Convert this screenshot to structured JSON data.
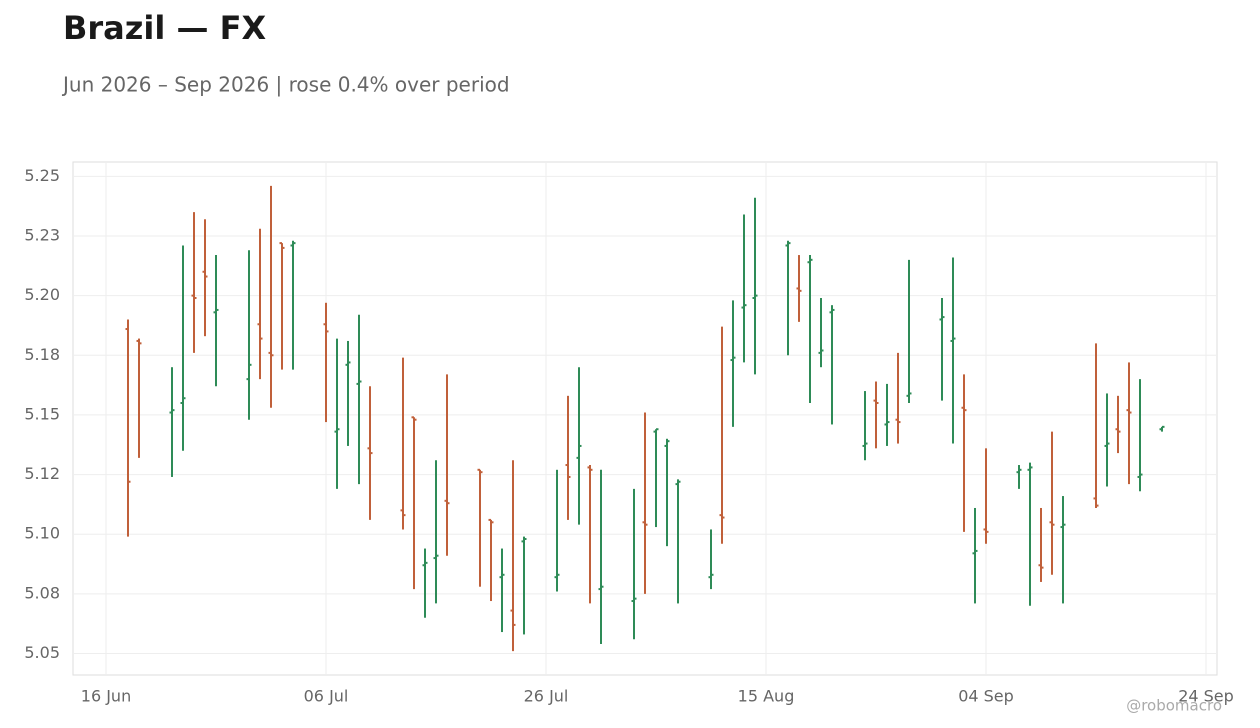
{
  "chart_data": {
    "type": "ohlc",
    "title": "Brazil — FX",
    "subtitle": "Jun 2026 – Sep 2026 | rose 0.4% over period",
    "watermark": "@robomacro",
    "up_color": "#2e8b57",
    "down_color": "#c0603a",
    "grid": true,
    "xlim": [
      "06-13",
      "09-25"
    ],
    "xticks": [
      {
        "value": "06-16",
        "label": "16 Jun"
      },
      {
        "value": "07-06",
        "label": "06 Jul"
      },
      {
        "value": "07-26",
        "label": "26 Jul"
      },
      {
        "value": "08-15",
        "label": "15 Aug"
      },
      {
        "value": "09-04",
        "label": "04 Sep"
      },
      {
        "value": "09-24",
        "label": "24 Sep"
      }
    ],
    "ylim": [
      5.041,
      5.256
    ],
    "yticks": [
      {
        "value": 5.05,
        "label": "5.05"
      },
      {
        "value": 5.075,
        "label": "5.08"
      },
      {
        "value": 5.1,
        "label": "5.10"
      },
      {
        "value": 5.125,
        "label": "5.12"
      },
      {
        "value": 5.15,
        "label": "5.15"
      },
      {
        "value": 5.175,
        "label": "5.18"
      },
      {
        "value": 5.2,
        "label": "5.20"
      },
      {
        "value": 5.225,
        "label": "5.23"
      },
      5.25
    ],
    "x": [
      "06-18",
      "06-19",
      "06-22",
      "06-23",
      "06-24",
      "06-25",
      "06-26",
      "06-29",
      "06-30",
      "07-01",
      "07-02",
      "07-03",
      "07-06",
      "07-07",
      "07-08",
      "07-09",
      "07-10",
      "07-13",
      "07-14",
      "07-15",
      "07-16",
      "07-17",
      "07-20",
      "07-21",
      "07-22",
      "07-23",
      "07-24",
      "07-27",
      "07-28",
      "07-29",
      "07-30",
      "07-31",
      "08-03",
      "08-04",
      "08-05",
      "08-06",
      "08-07",
      "08-10",
      "08-11",
      "08-12",
      "08-13",
      "08-14",
      "08-17",
      "08-18",
      "08-19",
      "08-20",
      "08-21",
      "08-24",
      "08-25",
      "08-26",
      "08-27",
      "08-28",
      "08-31",
      "09-01",
      "09-02",
      "09-03",
      "09-04",
      "09-07",
      "09-08",
      "09-09",
      "09-10",
      "09-11",
      "09-14",
      "09-15",
      "09-16",
      "09-17",
      "09-18",
      "09-20"
    ],
    "open": [
      5.186,
      5.181,
      5.151,
      5.155,
      5.2,
      5.21,
      5.193,
      5.165,
      5.188,
      5.176,
      5.222,
      5.221,
      5.188,
      5.143,
      5.171,
      5.163,
      5.136,
      5.11,
      5.149,
      5.087,
      5.09,
      5.114,
      5.127,
      5.106,
      5.082,
      5.068,
      5.097,
      5.082,
      5.129,
      5.132,
      5.128,
      5.077,
      5.072,
      5.105,
      5.143,
      5.137,
      5.121,
      5.082,
      5.108,
      5.173,
      5.195,
      5.199,
      5.221,
      5.203,
      5.214,
      5.176,
      5.193,
      5.137,
      5.156,
      5.146,
      5.148,
      5.158,
      5.19,
      5.181,
      5.153,
      5.092,
      5.102,
      5.126,
      5.127,
      5.087,
      5.105,
      5.103,
      5.115,
      5.137,
      5.144,
      5.152,
      5.124,
      5.144
    ],
    "high": [
      5.19,
      5.182,
      5.17,
      5.221,
      5.235,
      5.232,
      5.217,
      5.219,
      5.228,
      5.246,
      5.222,
      5.223,
      5.197,
      5.182,
      5.181,
      5.192,
      5.162,
      5.174,
      5.149,
      5.094,
      5.131,
      5.167,
      5.127,
      5.106,
      5.094,
      5.131,
      5.099,
      5.127,
      5.158,
      5.17,
      5.129,
      5.127,
      5.119,
      5.151,
      5.144,
      5.14,
      5.123,
      5.102,
      5.187,
      5.198,
      5.234,
      5.241,
      5.223,
      5.217,
      5.217,
      5.199,
      5.196,
      5.16,
      5.164,
      5.163,
      5.176,
      5.215,
      5.199,
      5.216,
      5.167,
      5.111,
      5.136,
      5.129,
      5.13,
      5.111,
      5.143,
      5.116,
      5.18,
      5.159,
      5.158,
      5.172,
      5.165,
      5.145
    ],
    "low": [
      5.099,
      5.132,
      5.124,
      5.135,
      5.176,
      5.183,
      5.162,
      5.148,
      5.165,
      5.153,
      5.169,
      5.169,
      5.147,
      5.119,
      5.137,
      5.121,
      5.106,
      5.102,
      5.077,
      5.065,
      5.071,
      5.091,
      5.078,
      5.072,
      5.059,
      5.051,
      5.058,
      5.076,
      5.106,
      5.104,
      5.071,
      5.054,
      5.056,
      5.075,
      5.103,
      5.095,
      5.071,
      5.077,
      5.096,
      5.145,
      5.172,
      5.167,
      5.175,
      5.189,
      5.155,
      5.17,
      5.146,
      5.131,
      5.136,
      5.137,
      5.138,
      5.155,
      5.156,
      5.138,
      5.101,
      5.071,
      5.096,
      5.119,
      5.07,
      5.08,
      5.083,
      5.071,
      5.111,
      5.12,
      5.134,
      5.121,
      5.118,
      5.143
    ],
    "close": [
      5.122,
      5.18,
      5.152,
      5.157,
      5.199,
      5.208,
      5.194,
      5.171,
      5.182,
      5.175,
      5.22,
      5.222,
      5.185,
      5.144,
      5.172,
      5.164,
      5.134,
      5.108,
      5.148,
      5.088,
      5.091,
      5.113,
      5.126,
      5.105,
      5.083,
      5.062,
      5.098,
      5.083,
      5.124,
      5.137,
      5.127,
      5.078,
      5.073,
      5.104,
      5.144,
      5.139,
      5.122,
      5.083,
      5.107,
      5.174,
      5.196,
      5.2,
      5.222,
      5.202,
      5.215,
      5.177,
      5.194,
      5.138,
      5.155,
      5.147,
      5.147,
      5.159,
      5.191,
      5.182,
      5.152,
      5.093,
      5.101,
      5.127,
      5.128,
      5.086,
      5.104,
      5.104,
      5.112,
      5.138,
      5.143,
      5.151,
      5.125,
      5.145
    ]
  }
}
